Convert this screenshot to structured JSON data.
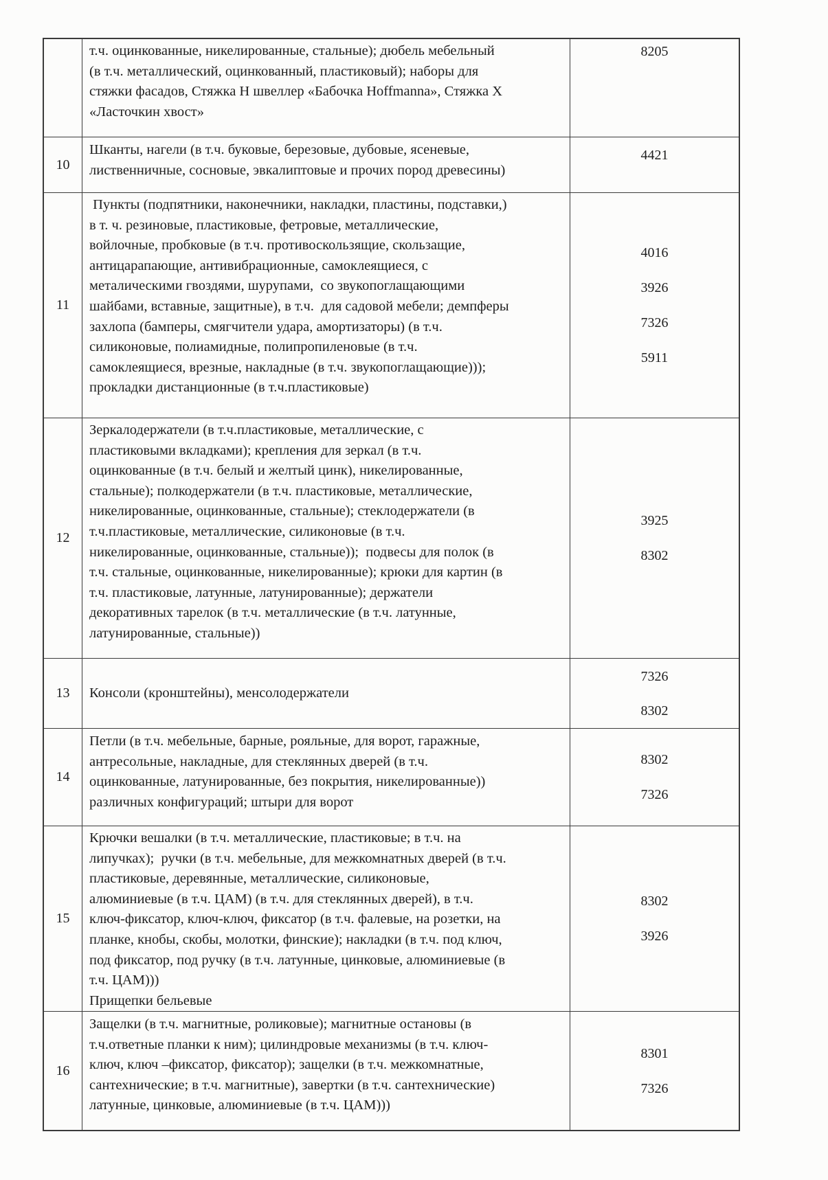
{
  "rows": [
    {
      "num": "",
      "lines": [
        "т.ч. оцинкованные, никелированные, стальные); дюбель мебельный",
        "(в т.ч. металлический, оцинкованный, пластиковый); наборы для",
        "стяжки фасадов, Стяжка Н швеллер «Бабочка Hoffmanna», Стяжка Х",
        "«Ласточкин хвост»"
      ],
      "codes": [
        "8205"
      ]
    },
    {
      "num": "10",
      "lines": [
        "Шканты, нагели (в т.ч. буковые, березовые, дубовые, ясеневые,",
        "лиственничные, сосновые, эвкалиптовые и прочих пород древесины)"
      ],
      "codes": [
        "4421"
      ]
    },
    {
      "num": "11",
      "lines": [
        " Пункты (подпятники, наконечники, накладки, пластины, подставки,)",
        "в т. ч. резиновые, пластиковые, фетровые, металлические,",
        "войлочные, пробковые (в т.ч. противоскользящие, скользащие,",
        "антицарапающие, антивибрационные, самоклеящиеся, с",
        "металическими гвоздями, шурупами,  со звукопоглащающими",
        "шайбами, вставные, защитные), в т.ч.  для садовой мебели; демпферы",
        "захлопа (бамперы, смягчители удара, амортизаторы) (в т.ч.",
        "силиконовые, полиамидные, полипропиленовые (в т.ч.",
        "самоклеящиеся, врезные, накладные (в т.ч. звукопоглащающие)));",
        "прокладки дистанционные (в т.ч.пластиковые)"
      ],
      "codes": [
        "4016",
        "3926",
        "7326",
        "5911"
      ]
    },
    {
      "num": "12",
      "lines": [
        "Зеркалодержатели (в т.ч.пластиковые, металлические, с",
        "пластиковыми вкладками); крепления для зеркал (в т.ч.",
        "оцинкованные (в т.ч. белый и желтый цинк), никелированные,",
        "стальные); полкодержатели (в т.ч. пластиковые, металлические,",
        "никелированные, оцинкованные, стальные); стеклодержатели (в",
        "т.ч.пластиковые, металлические, силиконовые (в т.ч.",
        "никелированные, оцинкованные, стальные));  подвесы для полок (в",
        "т.ч. стальные, оцинкованные, никелированные); крюки для картин (в",
        "т.ч. пластиковые, латунные, латунированные); держатели",
        "декоративных тарелок (в т.ч. металлические (в т.ч. латунные,",
        "латунированные, стальные))"
      ],
      "codes": [
        "3925",
        "8302"
      ]
    },
    {
      "num": "13",
      "lines": [
        "Консоли (кронштейны), менсолодержатели"
      ],
      "codes": [
        "7326",
        "8302"
      ]
    },
    {
      "num": "14",
      "lines": [
        "Петли (в т.ч. мебельные, барные, рояльные, для ворот, гаражные,",
        "антресольные, накладные, для стеклянных дверей (в т.ч.",
        "оцинкованные, латунированные, без покрытия, никелированные))",
        "различных конфигураций; штыри для ворот"
      ],
      "codes": [
        "8302",
        "7326"
      ]
    },
    {
      "num": "15",
      "lines": [
        "Крючки вешалки (в т.ч. металлические, пластиковые; в т.ч. на",
        "липучках);  ручки (в т.ч. мебельные, для межкомнатных дверей (в т.ч.",
        "пластиковые, деревянные, металлические, силиконовые,",
        "алюминиевые (в т.ч. ЦАМ) (в т.ч. для стеклянных дверей), в т.ч.",
        "ключ-фиксатор, ключ-ключ, фиксатор (в т.ч. фалевые, на розетки, на",
        "планке, кнобы, скобы, молотки, финские); накладки (в т.ч. под ключ,",
        "под фиксатор, под ручку (в т.ч. латунные, цинковые, алюминиевые (в",
        "т.ч. ЦАМ)))",
        "Прищепки бельевые"
      ],
      "codes": [
        "8302",
        "3926"
      ]
    },
    {
      "num": "16",
      "lines": [
        "Защелки (в т.ч. магнитные, роликовые); магнитные остановы (в",
        "т.ч.ответные планки к ним); цилиндровые механизмы (в т.ч. ключ-",
        "ключ, ключ –фиксатор, фиксатор); защелки (в т.ч. межкомнатные,",
        "сантехнические; в т.ч. магнитные), завертки (в т.ч. сантехнические)",
        "латунные, цинковые, алюминиевые (в т.ч. ЦАМ)))"
      ],
      "codes": [
        "8301",
        "7326"
      ]
    }
  ]
}
